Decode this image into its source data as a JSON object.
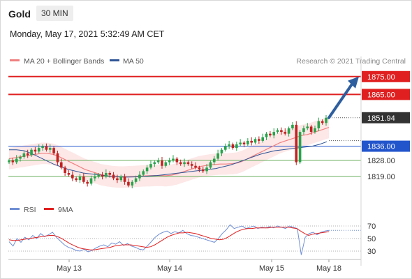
{
  "header": {
    "instrument": "Gold",
    "timeframe": "30 MIN",
    "timestamp": "Monday, May 17, 2021 5:32:49 AM CET"
  },
  "colors": {
    "ma20": "#f08080",
    "band_fill": "#fde3e3",
    "ma50": "#2f5597",
    "resistance": "#e02020",
    "support_strong": "#2255cc",
    "support": "#6cb060",
    "candle_up": "#27a34a",
    "candle_down": "#c22020",
    "arrow": "#2e5e9e",
    "price_tag": "#333333",
    "rsi": "#6f8ed4",
    "rsi_ma": "#e02020"
  },
  "chart_data": [
    {
      "type": "candlestick",
      "legend": [
        {
          "name": "MA 20 + Bollinger Bands",
          "color": "#f08080"
        },
        {
          "name": "MA 50",
          "color": "#2f5597"
        }
      ],
      "watermark": "Research © 2021 Trading Central",
      "ylim": [
        1812,
        1880
      ],
      "x_ticks": [
        "May 13",
        "May 14",
        "May 15",
        "May 18"
      ],
      "levels": [
        {
          "label": "1875.00",
          "value": 1875.0,
          "kind": "resistance"
        },
        {
          "label": "1865.00",
          "value": 1865.0,
          "kind": "resistance"
        },
        {
          "label": "1836.00",
          "value": 1836.0,
          "kind": "support_strong"
        },
        {
          "label": "1828.00",
          "value": 1828.0,
          "kind": "support"
        },
        {
          "label": "1819.00",
          "value": 1819.0,
          "kind": "support"
        }
      ],
      "last_price": {
        "label": "1851.94",
        "value": 1851.94
      },
      "projection_arrow": {
        "from": 1851.94,
        "to": 1875.0
      },
      "close_series": [
        1828,
        1827,
        1829,
        1830,
        1832,
        1831,
        1834,
        1833,
        1835,
        1836,
        1834,
        1835,
        1832,
        1827,
        1824,
        1821,
        1820,
        1818,
        1817,
        1819,
        1816,
        1815,
        1818,
        1819,
        1820,
        1819,
        1821,
        1820,
        1818,
        1817,
        1819,
        1816,
        1814,
        1816,
        1818,
        1820,
        1822,
        1824,
        1826,
        1827,
        1828,
        1825,
        1827,
        1828,
        1829,
        1827,
        1826,
        1827,
        1826,
        1825,
        1824,
        1823,
        1822,
        1824,
        1827,
        1829,
        1832,
        1834,
        1836,
        1837,
        1835,
        1837,
        1838,
        1837,
        1839,
        1838,
        1840,
        1839,
        1841,
        1843,
        1842,
        1844,
        1845,
        1844,
        1843,
        1846,
        1848,
        1827,
        1844,
        1846,
        1847,
        1844,
        1846,
        1850,
        1849,
        1851.94
      ],
      "ma20_series": [
        1829,
        1829.5,
        1830,
        1830.5,
        1831,
        1831.5,
        1832,
        1832,
        1831.5,
        1830.5,
        1829,
        1827.5,
        1826,
        1824.5,
        1823,
        1822,
        1821,
        1820,
        1819.5,
        1819,
        1818.8,
        1818.7,
        1818.9,
        1819,
        1819.2,
        1819.4,
        1819.5,
        1819.6,
        1819.6,
        1819.5,
        1819.8,
        1820.5,
        1821.5,
        1822.5,
        1823.5,
        1824.5,
        1825,
        1825.5,
        1825.8,
        1826,
        1826,
        1826.2,
        1826.5,
        1827.5,
        1829,
        1830.5,
        1832,
        1833.5,
        1835,
        1836.5,
        1838,
        1839,
        1840,
        1841,
        1842,
        1842.5,
        1843.5,
        1844.5,
        1845.5,
        1846.5
      ],
      "ma50_series": [
        1834,
        1834,
        1833.5,
        1832,
        1830,
        1828,
        1826,
        1824.5,
        1823,
        1822,
        1821,
        1820.5,
        1820,
        1819.5,
        1819,
        1818.8,
        1818.7,
        1818.8,
        1819,
        1819.3,
        1819.6,
        1820,
        1820.5,
        1821,
        1821.5,
        1822,
        1822.5,
        1823,
        1823.5,
        1824.5,
        1825.5,
        1827,
        1828.5,
        1830,
        1831.5,
        1832.5,
        1833.5,
        1834,
        1834.5,
        1835,
        1835.5,
        1836,
        1837,
        1838.5
      ]
    },
    {
      "type": "line",
      "legend": [
        {
          "name": "RSI",
          "color": "#6f8ed4"
        },
        {
          "name": "9MA",
          "color": "#e02020"
        }
      ],
      "y_ticks": [
        70,
        50,
        30
      ],
      "ylim": [
        20,
        80
      ],
      "rsi_series": [
        45,
        38,
        50,
        44,
        52,
        48,
        55,
        50,
        58,
        53,
        56,
        60,
        52,
        46,
        40,
        36,
        34,
        31,
        30,
        33,
        29,
        31,
        35,
        38,
        40,
        37,
        43,
        41,
        45,
        39,
        42,
        38,
        36,
        33,
        32,
        38,
        45,
        52,
        57,
        60,
        62,
        58,
        61,
        59,
        63,
        58,
        55,
        54,
        52,
        50,
        48,
        46,
        44,
        50,
        58,
        64,
        72,
        66,
        68,
        70,
        66,
        68,
        70,
        66,
        68,
        67,
        69,
        67,
        70,
        68,
        66,
        70,
        68,
        66,
        24,
        52,
        58,
        60,
        56,
        60,
        62,
        63
      ],
      "ma9_series": [
        48,
        47,
        47,
        48,
        49,
        50,
        51,
        52,
        53,
        54,
        55,
        55,
        53,
        50,
        46,
        42,
        39,
        36,
        34,
        33,
        32,
        32,
        33,
        34,
        35,
        36,
        38,
        39,
        40,
        40,
        40,
        39,
        38,
        37,
        36,
        37,
        40,
        44,
        48,
        52,
        55,
        57,
        59,
        59,
        60,
        59,
        58,
        56,
        54,
        52,
        50,
        49,
        48,
        49,
        52,
        56,
        60,
        63,
        65,
        66,
        66,
        67,
        67,
        67,
        67,
        68,
        68,
        68,
        68,
        68,
        67,
        66,
        62,
        58,
        55,
        57,
        58,
        59,
        60,
        61
      ]
    }
  ]
}
